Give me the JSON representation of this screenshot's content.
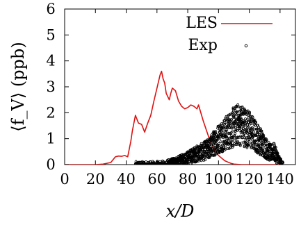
{
  "chart_data": {
    "type": "line",
    "xlabel": "x/D",
    "ylabel": "⟨f_V⟩ (ppb)",
    "xlim": [
      0,
      150
    ],
    "ylim": [
      0,
      6
    ],
    "x_ticks": [
      0,
      20,
      40,
      60,
      80,
      100,
      120,
      140
    ],
    "y_ticks": [
      0,
      1,
      2,
      3,
      4,
      5,
      6
    ],
    "x_tick_labels": [
      "0",
      "20",
      "40",
      "60",
      "80",
      "100",
      "120",
      "140"
    ],
    "y_tick_labels": [
      "0",
      "1",
      "2",
      "3",
      "4",
      "5",
      "6"
    ],
    "grid": false,
    "legend_position": "top-right",
    "series": [
      {
        "name": "LES",
        "type": "line",
        "color": "#dd1111",
        "x": [
          0,
          20,
          25,
          30,
          33,
          35,
          37,
          39,
          41,
          43,
          44,
          46,
          47,
          48,
          50,
          52,
          54,
          56,
          58,
          60,
          62,
          63,
          64,
          65,
          66,
          68,
          69,
          70,
          72,
          74,
          76,
          78,
          80,
          82,
          84,
          86,
          87,
          88,
          90,
          92,
          94,
          96,
          98,
          100,
          102,
          104,
          106,
          108,
          110,
          115,
          120,
          130,
          140
        ],
        "values": [
          0,
          0,
          0.02,
          0.08,
          0.3,
          0.33,
          0.32,
          0.35,
          0.3,
          0.9,
          1.3,
          1.9,
          1.75,
          1.6,
          1.55,
          1.25,
          1.6,
          1.9,
          2.45,
          2.95,
          3.45,
          3.6,
          3.3,
          3.15,
          2.75,
          2.5,
          2.75,
          2.95,
          2.85,
          2.45,
          2.25,
          2.15,
          2.2,
          2.3,
          2.25,
          2.15,
          2.3,
          2.1,
          1.7,
          1.35,
          1.0,
          0.75,
          0.5,
          0.35,
          0.25,
          0.15,
          0.1,
          0.05,
          0.02,
          0,
          0,
          0,
          0
        ]
      },
      {
        "name": "Exp",
        "type": "scatter",
        "color": "#000000",
        "envelope_x": [
          46,
          56,
          62,
          66,
          70,
          74,
          78,
          82,
          86,
          90,
          94,
          98,
          102,
          106,
          110,
          113,
          116,
          120,
          124,
          128,
          132,
          134,
          136,
          138,
          140,
          142
        ],
        "envelope_y": [
          0,
          0,
          0.01,
          0.03,
          0.08,
          0.14,
          0.22,
          0.32,
          0.42,
          0.5,
          0.62,
          0.9,
          1.1,
          1.25,
          1.45,
          1.55,
          1.5,
          1.35,
          1.1,
          0.85,
          0.55,
          0.45,
          0.5,
          0.3,
          0.1,
          0
        ],
        "peak_x": 113,
        "peak_value": 2.1
      }
    ]
  }
}
